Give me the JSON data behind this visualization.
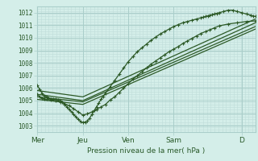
{
  "bg_color": "#d4eee9",
  "plot_bg_color": "#d4eee9",
  "grid_color_major": "#aaceca",
  "grid_color_minor": "#c0ddd9",
  "line_color": "#2d5a27",
  "border_color": "#aaceca",
  "title": "Pression niveau de la mer( hPa )",
  "ylim": [
    1002.5,
    1012.5
  ],
  "yticks": [
    1003,
    1004,
    1005,
    1006,
    1007,
    1008,
    1009,
    1010,
    1011,
    1012
  ],
  "xlim": [
    0.0,
    4.8
  ],
  "xtick_positions": [
    0.0,
    1.0,
    2.0,
    3.0,
    4.5
  ],
  "xtick_labels": [
    "Mer",
    "Jeu",
    "Ven",
    "Sam",
    "D"
  ],
  "line1_x": [
    0.0,
    0.05,
    0.1,
    0.15,
    0.2,
    0.25,
    0.3,
    0.35,
    0.4,
    0.45,
    0.5,
    0.55,
    0.6,
    0.65,
    0.7,
    0.75,
    0.8,
    0.85,
    0.9,
    0.95,
    1.0,
    1.05,
    1.1,
    1.15,
    1.2,
    1.25,
    1.3,
    1.35,
    1.4,
    1.45,
    1.5,
    1.6,
    1.7,
    1.8,
    1.9,
    2.0,
    2.1,
    2.2,
    2.3,
    2.4,
    2.5,
    2.6,
    2.7,
    2.8,
    2.9,
    3.0,
    3.1,
    3.2,
    3.3,
    3.4,
    3.5,
    3.6,
    3.65,
    3.7,
    3.75,
    3.8,
    3.85,
    3.9,
    3.95,
    4.0,
    4.1,
    4.2,
    4.3,
    4.4,
    4.5,
    4.6,
    4.7,
    4.75,
    4.8
  ],
  "line1_y": [
    1006.2,
    1005.9,
    1005.6,
    1005.4,
    1005.3,
    1005.2,
    1005.15,
    1005.1,
    1005.1,
    1005.05,
    1005.0,
    1004.9,
    1004.7,
    1004.5,
    1004.3,
    1004.1,
    1003.9,
    1003.7,
    1003.5,
    1003.35,
    1003.25,
    1003.3,
    1003.4,
    1003.6,
    1003.9,
    1004.2,
    1004.5,
    1004.8,
    1005.1,
    1005.35,
    1005.6,
    1006.1,
    1006.6,
    1007.1,
    1007.6,
    1008.1,
    1008.5,
    1008.9,
    1009.2,
    1009.5,
    1009.8,
    1010.05,
    1010.3,
    1010.5,
    1010.7,
    1010.9,
    1011.05,
    1011.2,
    1011.3,
    1011.4,
    1011.5,
    1011.6,
    1011.65,
    1011.7,
    1011.75,
    1011.8,
    1011.85,
    1011.9,
    1011.95,
    1012.0,
    1012.1,
    1012.2,
    1012.2,
    1012.1,
    1012.0,
    1011.9,
    1011.8,
    1011.75,
    1011.7
  ],
  "line2_x": [
    0.0,
    1.0,
    4.8
  ],
  "line2_y": [
    1005.8,
    1005.3,
    1011.5
  ],
  "line3_x": [
    0.0,
    1.0,
    4.8
  ],
  "line3_y": [
    1005.5,
    1005.0,
    1011.2
  ],
  "line4_x": [
    0.0,
    1.0,
    4.8
  ],
  "line4_y": [
    1005.3,
    1004.9,
    1010.9
  ],
  "line5_x": [
    0.0,
    1.0,
    4.8
  ],
  "line5_y": [
    1005.1,
    1004.7,
    1010.7
  ],
  "line6_x": [
    0.0,
    0.05,
    0.1,
    0.15,
    0.2,
    0.3,
    0.4,
    0.5,
    0.6,
    0.7,
    0.8,
    0.9,
    1.0,
    1.1,
    1.2,
    1.3,
    1.4,
    1.5,
    1.6,
    1.7,
    1.8,
    1.9,
    2.0,
    2.1,
    2.2,
    2.3,
    2.4,
    2.5,
    2.6,
    2.7,
    2.8,
    2.9,
    3.0,
    3.1,
    3.2,
    3.3,
    3.4,
    3.5,
    3.6,
    3.7,
    3.8,
    3.9,
    4.0,
    4.2,
    4.4,
    4.6,
    4.8
  ],
  "line6_y": [
    1005.5,
    1005.3,
    1005.2,
    1005.15,
    1005.1,
    1005.05,
    1005.0,
    1004.9,
    1004.75,
    1004.6,
    1004.35,
    1004.1,
    1003.85,
    1003.95,
    1004.1,
    1004.3,
    1004.5,
    1004.7,
    1005.05,
    1005.3,
    1005.65,
    1006.0,
    1006.35,
    1006.7,
    1007.0,
    1007.3,
    1007.6,
    1007.9,
    1008.15,
    1008.4,
    1008.65,
    1008.9,
    1009.1,
    1009.3,
    1009.55,
    1009.75,
    1009.95,
    1010.15,
    1010.35,
    1010.5,
    1010.65,
    1010.8,
    1010.95,
    1011.1,
    1011.2,
    1011.3,
    1011.35
  ]
}
